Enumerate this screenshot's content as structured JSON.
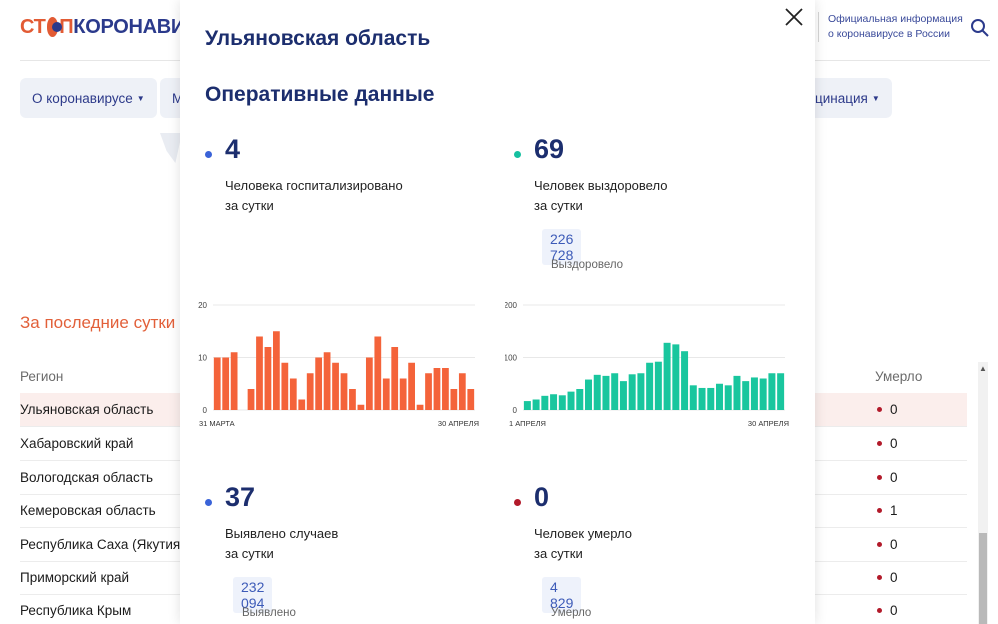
{
  "logo": {
    "part1": "СТ",
    "part2": "П",
    "part3": "КОРОНАВИ"
  },
  "header": {
    "info_line1": "Официальная информация",
    "info_line2": "о коронавирусе в России"
  },
  "nav": [
    {
      "label": "О коронавирусе"
    },
    {
      "label": "М"
    },
    {
      "label": "цинация"
    }
  ],
  "section": {
    "title": "За последние сутки"
  },
  "table": {
    "col_region": "Регион",
    "col_died": "Умерло",
    "rows": [
      {
        "name": "Ульяновская область",
        "died": "0"
      },
      {
        "name": "Хабаровский край",
        "died": "0"
      },
      {
        "name": "Вологодская область",
        "died": "0"
      },
      {
        "name": "Кемеровская область",
        "died": "1"
      },
      {
        "name": "Республика Саха (Якутия)",
        "died": "0"
      },
      {
        "name": "Приморский край",
        "died": "0"
      },
      {
        "name": "Республика Крым",
        "died": "0"
      }
    ]
  },
  "modal": {
    "title": "Ульяновская область",
    "subtitle": "Оперативные данные",
    "stats": [
      {
        "value": "4",
        "line1": "Человека госпитализировано",
        "line2": "за сутки",
        "color": "#3a63d8"
      },
      {
        "value": "69",
        "line1": "Человек выздоровело",
        "line2": "за сутки",
        "total": "226 728",
        "total_label": "Выздоровело",
        "color": "#16c0a0"
      },
      {
        "value": "37",
        "line1": "Выявлено случаев",
        "line2": "за сутки",
        "total": "232 094",
        "total_label": "Выявлено",
        "color": "#3a63d8"
      },
      {
        "value": "0",
        "line1": "Человек умерло",
        "line2": "за сутки",
        "total": "4 829",
        "total_label": "Умерло",
        "color": "#b21a2a"
      }
    ]
  },
  "chart_data": [
    {
      "type": "bar",
      "color": "#f4633a",
      "ylim": [
        0,
        20
      ],
      "yticks": [
        "20",
        "10",
        "0"
      ],
      "x_start_label": "31 МАРТА",
      "x_end_label": "30 АПРЕЛЯ",
      "values": [
        10,
        10,
        11,
        0,
        4,
        14,
        12,
        15,
        9,
        6,
        2,
        7,
        10,
        11,
        9,
        7,
        4,
        1,
        10,
        14,
        6,
        12,
        6,
        9,
        1,
        7,
        8,
        8,
        4,
        7,
        4
      ]
    },
    {
      "type": "bar",
      "color": "#19c69e",
      "ylim": [
        0,
        200
      ],
      "yticks": [
        "200",
        "100",
        "0"
      ],
      "x_start_label": "1 АПРЕЛЯ",
      "x_end_label": "30 АПРЕЛЯ",
      "values": [
        17,
        20,
        27,
        30,
        28,
        35,
        40,
        58,
        67,
        65,
        70,
        55,
        68,
        70,
        90,
        92,
        128,
        125,
        112,
        47,
        42,
        42,
        50,
        47,
        65,
        55,
        62,
        60,
        70,
        70
      ]
    }
  ]
}
